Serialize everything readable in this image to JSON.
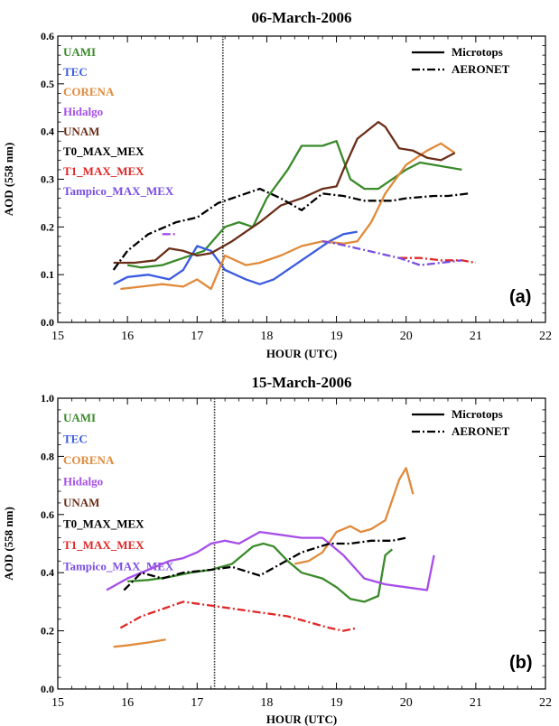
{
  "chart_data": [
    {
      "type": "line",
      "title": "06-March-2006",
      "xlabel": "HOUR (UTC)",
      "ylabel": "AOD (558 nm)",
      "xlim": [
        15,
        22
      ],
      "ylim": [
        0.0,
        0.6
      ],
      "xticks": [
        15,
        16,
        17,
        18,
        19,
        20,
        21,
        22
      ],
      "yticks": [
        0.0,
        0.1,
        0.2,
        0.3,
        0.4,
        0.5,
        0.6
      ],
      "ytick_labels": [
        "0.0",
        "0.1",
        "0.2",
        "0.3",
        "0.4",
        "0.5",
        "0.6"
      ],
      "vline_x": 17.37,
      "panel_label": "(a)",
      "legend": {
        "placement": "top-right",
        "entries": [
          {
            "label": "Microtops",
            "style": "solid"
          },
          {
            "label": "AERONET",
            "style": "dashdot"
          }
        ]
      },
      "sites": [
        {
          "label": "UAMI",
          "color": "#3a8a2a"
        },
        {
          "label": "TEC",
          "color": "#3a5be0"
        },
        {
          "label": "CORENA",
          "color": "#e08a3a"
        },
        {
          "label": "Hidalgo",
          "color": "#a64ee8"
        },
        {
          "label": "UNAM",
          "color": "#6b2e18"
        },
        {
          "label": "T0_MAX_MEX",
          "color": "#000000"
        },
        {
          "label": "T1_MAX_MEX",
          "color": "#e02828"
        },
        {
          "label": "Tampico_MAX_MEX",
          "color": "#7a4ee0"
        }
      ],
      "series": [
        {
          "site": "UAMI",
          "color": "#3a8a2a",
          "style": "solid",
          "x": [
            16.0,
            16.2,
            16.5,
            16.8,
            17.1,
            17.4,
            17.6,
            17.8,
            18.0,
            18.3,
            18.5,
            18.8,
            19.0,
            19.2,
            19.4,
            19.6,
            20.0,
            20.2,
            20.4,
            20.8
          ],
          "y": [
            0.12,
            0.115,
            0.12,
            0.135,
            0.15,
            0.2,
            0.21,
            0.2,
            0.26,
            0.32,
            0.37,
            0.37,
            0.38,
            0.3,
            0.28,
            0.28,
            0.32,
            0.335,
            0.33,
            0.32
          ]
        },
        {
          "site": "TEC",
          "color": "#3a5be0",
          "style": "solid",
          "x": [
            15.8,
            16.0,
            16.3,
            16.6,
            16.8,
            17.0,
            17.2,
            17.4,
            17.7,
            17.9,
            18.1,
            18.4,
            18.7,
            18.9,
            19.1,
            19.3
          ],
          "y": [
            0.08,
            0.095,
            0.1,
            0.09,
            0.11,
            0.16,
            0.15,
            0.11,
            0.09,
            0.08,
            0.09,
            0.12,
            0.15,
            0.17,
            0.185,
            0.19
          ]
        },
        {
          "site": "CORENA",
          "color": "#e08a3a",
          "style": "solid",
          "x": [
            15.9,
            16.2,
            16.5,
            16.8,
            17.0,
            17.2,
            17.4,
            17.7,
            17.9,
            18.2,
            18.5,
            18.8,
            19.1,
            19.3,
            19.5,
            19.7,
            20.0,
            20.3,
            20.5,
            20.7
          ],
          "y": [
            0.07,
            0.075,
            0.08,
            0.075,
            0.09,
            0.07,
            0.14,
            0.12,
            0.125,
            0.14,
            0.16,
            0.17,
            0.165,
            0.17,
            0.21,
            0.27,
            0.33,
            0.36,
            0.375,
            0.355
          ]
        },
        {
          "site": "Hidalgo",
          "color": "#a64ee8",
          "style": "dashdot",
          "x": [
            16.5,
            16.7
          ],
          "y": [
            0.185,
            0.185
          ]
        },
        {
          "site": "UNAM",
          "color": "#6b2e18",
          "style": "solid",
          "x": [
            15.8,
            16.1,
            16.4,
            16.6,
            16.8,
            17.0,
            17.2,
            17.5,
            17.7,
            17.9,
            18.2,
            18.5,
            18.8,
            19.0,
            19.1,
            19.3,
            19.6,
            19.7,
            19.9,
            20.1,
            20.3,
            20.5,
            20.7
          ],
          "y": [
            0.125,
            0.125,
            0.13,
            0.155,
            0.15,
            0.14,
            0.145,
            0.17,
            0.19,
            0.21,
            0.245,
            0.26,
            0.28,
            0.285,
            0.32,
            0.385,
            0.42,
            0.41,
            0.365,
            0.36,
            0.345,
            0.34,
            0.355
          ]
        },
        {
          "site": "T0_MAX_MEX",
          "color": "#000000",
          "style": "dashdot",
          "x": [
            15.8,
            16.0,
            16.3,
            16.7,
            17.0,
            17.3,
            17.6,
            17.9,
            18.2,
            18.5,
            18.8,
            19.1,
            19.4,
            19.8,
            20.0,
            20.4,
            20.6,
            20.9
          ],
          "y": [
            0.11,
            0.15,
            0.185,
            0.21,
            0.22,
            0.25,
            0.265,
            0.28,
            0.26,
            0.235,
            0.27,
            0.265,
            0.255,
            0.255,
            0.26,
            0.265,
            0.265,
            0.27
          ]
        },
        {
          "site": "T1_MAX_MEX",
          "color": "#e02828",
          "style": "dashdot",
          "x": [
            19.9,
            20.2,
            20.5,
            20.8,
            21.0
          ],
          "y": [
            0.135,
            0.135,
            0.13,
            0.13,
            0.125
          ]
        },
        {
          "site": "Tampico_MAX_MEX",
          "color": "#7a4ee0",
          "style": "dashdot",
          "x": [
            18.8,
            19.0,
            19.3,
            19.6,
            19.9,
            20.2,
            20.5,
            20.8
          ],
          "y": [
            0.17,
            0.165,
            0.155,
            0.145,
            0.135,
            0.12,
            0.125,
            0.13
          ]
        }
      ]
    },
    {
      "type": "line",
      "title": "15-March-2006",
      "xlabel": "HOUR (UTC)",
      "ylabel": "AOD (558 nm)",
      "xlim": [
        15,
        22
      ],
      "ylim": [
        0.0,
        1.0
      ],
      "xticks": [
        15,
        16,
        17,
        18,
        19,
        20,
        21,
        22
      ],
      "yticks": [
        0.0,
        0.2,
        0.4,
        0.6,
        0.8,
        1.0
      ],
      "ytick_labels": [
        "0.0",
        "0.2",
        "0.4",
        "0.6",
        "0.8",
        "1.0"
      ],
      "vline_x": 17.25,
      "panel_label": "(b)",
      "legend": {
        "placement": "top-right",
        "entries": [
          {
            "label": "Microtops",
            "style": "solid"
          },
          {
            "label": "AERONET",
            "style": "dashdot"
          }
        ]
      },
      "sites": [
        {
          "label": "UAMI",
          "color": "#3a8a2a"
        },
        {
          "label": "TEC",
          "color": "#3a5be0"
        },
        {
          "label": "CORENA",
          "color": "#e08a3a"
        },
        {
          "label": "Hidalgo",
          "color": "#a64ee8"
        },
        {
          "label": "UNAM",
          "color": "#6b2e18"
        },
        {
          "label": "T0_MAX_MEX",
          "color": "#000000"
        },
        {
          "label": "T1_MAX_MEX",
          "color": "#e02828"
        },
        {
          "label": "Tampico_MAX_MEX",
          "color": "#7a4ee0"
        }
      ],
      "series": [
        {
          "site": "UAMI",
          "color": "#3a8a2a",
          "style": "solid",
          "x": [
            16.0,
            16.3,
            16.6,
            16.9,
            17.2,
            17.5,
            17.8,
            17.95,
            18.1,
            18.3,
            18.5,
            18.8,
            19.0,
            19.2,
            19.4,
            19.6,
            19.7,
            19.8
          ],
          "y": [
            0.37,
            0.375,
            0.385,
            0.4,
            0.41,
            0.43,
            0.49,
            0.5,
            0.49,
            0.44,
            0.4,
            0.38,
            0.35,
            0.31,
            0.3,
            0.32,
            0.46,
            0.48
          ]
        },
        {
          "site": "CORENA",
          "color": "#e08a3a",
          "style": "solid",
          "x": [
            15.8,
            16.0,
            16.3,
            16.55
          ],
          "y": [
            0.145,
            0.15,
            0.16,
            0.17
          ]
        },
        {
          "site": "CORENA",
          "color": "#e08a3a",
          "style": "solid",
          "x": [
            18.4,
            18.6,
            18.8,
            19.0,
            19.2,
            19.35,
            19.5,
            19.7,
            19.9,
            20.0,
            20.1
          ],
          "y": [
            0.43,
            0.44,
            0.47,
            0.54,
            0.56,
            0.54,
            0.55,
            0.58,
            0.72,
            0.76,
            0.67
          ]
        },
        {
          "site": "Hidalgo",
          "color": "#a64ee8",
          "style": "solid",
          "x": [
            15.7,
            16.0,
            16.3,
            16.6,
            16.8,
            17.0,
            17.2,
            17.4,
            17.6,
            17.9,
            18.2,
            18.5,
            18.8,
            19.1,
            19.4,
            19.7,
            20.0,
            20.3,
            20.4
          ],
          "y": [
            0.34,
            0.38,
            0.41,
            0.44,
            0.45,
            0.47,
            0.5,
            0.51,
            0.5,
            0.54,
            0.53,
            0.52,
            0.52,
            0.46,
            0.38,
            0.36,
            0.35,
            0.34,
            0.46
          ]
        },
        {
          "site": "T0_MAX_MEX",
          "color": "#000000",
          "style": "dashdot",
          "x": [
            15.95,
            16.2,
            16.5,
            16.8,
            17.2,
            17.5,
            17.9,
            18.2,
            18.5,
            18.9,
            19.2,
            19.5,
            19.8,
            20.0
          ],
          "y": [
            0.34,
            0.4,
            0.38,
            0.4,
            0.41,
            0.42,
            0.39,
            0.43,
            0.47,
            0.5,
            0.5,
            0.51,
            0.51,
            0.52
          ]
        },
        {
          "site": "T1_MAX_MEX",
          "color": "#e02828",
          "style": "dashdot",
          "x": [
            15.9,
            16.2,
            16.5,
            16.8,
            17.1,
            17.4,
            17.7,
            18.0,
            18.3,
            18.6,
            18.9,
            19.1,
            19.3
          ],
          "y": [
            0.21,
            0.25,
            0.275,
            0.3,
            0.29,
            0.28,
            0.27,
            0.26,
            0.25,
            0.23,
            0.21,
            0.2,
            0.21
          ]
        }
      ]
    }
  ]
}
